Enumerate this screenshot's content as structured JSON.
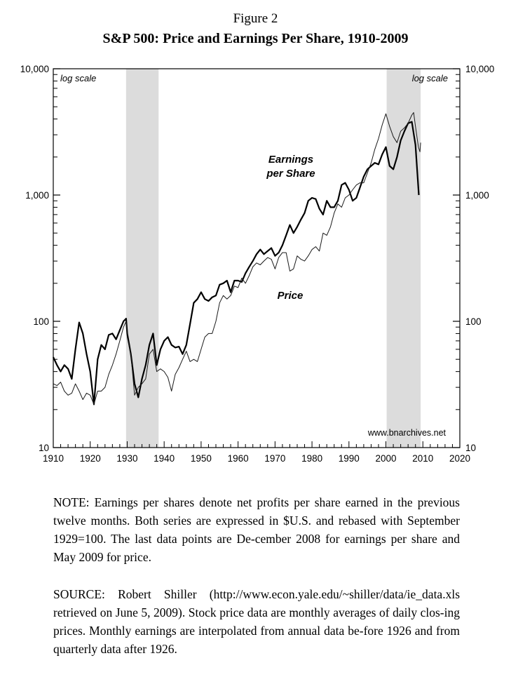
{
  "figure_label": "Figure 2",
  "title": "S&P 500: Price and Earnings Per Share, 1910-2009",
  "note": "NOTE: Earnings per shares denote net profits per share earned in the previous twelve months. Both series are expressed in $U.S. and rebased with September 1929=100. The last data points are De-cember 2008 for earnings per share and May 2009 for price.",
  "source": "SOURCE: Robert Shiller (http://www.econ.yale.edu/~shiller/data/ie_data.xls retrieved on June 5, 2009). Stock price data are monthly averages of daily clos-ing prices. Monthly earnings are interpolated from annual data be-fore 1926 and from quarterly data after 1926.",
  "chart_data": {
    "type": "line",
    "title": "S&P 500: Price and Earnings Per Share, 1910-2009",
    "xlim": [
      1910,
      2020
    ],
    "ylim": [
      10,
      10000
    ],
    "y_scale": "log",
    "grid": false,
    "x_ticks": [
      1910,
      1920,
      1930,
      1940,
      1950,
      1960,
      1970,
      1980,
      1990,
      2000,
      2010,
      2020
    ],
    "x_tick_labels": [
      "1910",
      "1920",
      "1930",
      "1940",
      "1950",
      "1960",
      "1970",
      "1980",
      "1990",
      "2000",
      "2010",
      "2020"
    ],
    "y_ticks": [
      10,
      100,
      1000,
      10000
    ],
    "y_tick_labels": [
      "10",
      "100",
      "1,000",
      "10,000"
    ],
    "scale_note_left": "log scale",
    "scale_note_right": "log scale",
    "watermark": "www.bnarchives.net",
    "shaded_periods": [
      [
        1929.7,
        1938.5
      ],
      [
        2000.2,
        2009.4
      ]
    ],
    "series": [
      {
        "name": "Earnings per Share",
        "name_lines": [
          "Earnings",
          "per Share"
        ],
        "stroke": "#000000",
        "points": [
          [
            1910,
            52
          ],
          [
            1911,
            45
          ],
          [
            1912,
            40
          ],
          [
            1913,
            45
          ],
          [
            1914,
            42
          ],
          [
            1915,
            35
          ],
          [
            1916,
            60
          ],
          [
            1917,
            98
          ],
          [
            1918,
            80
          ],
          [
            1919,
            55
          ],
          [
            1920,
            40
          ],
          [
            1921,
            22
          ],
          [
            1922,
            50
          ],
          [
            1923,
            65
          ],
          [
            1924,
            60
          ],
          [
            1925,
            78
          ],
          [
            1926,
            80
          ],
          [
            1927,
            72
          ],
          [
            1928,
            85
          ],
          [
            1929,
            100
          ],
          [
            1929.7,
            105
          ],
          [
            1930,
            80
          ],
          [
            1931,
            55
          ],
          [
            1932,
            32
          ],
          [
            1933,
            25
          ],
          [
            1934,
            35
          ],
          [
            1935,
            45
          ],
          [
            1936,
            65
          ],
          [
            1937,
            80
          ],
          [
            1938,
            45
          ],
          [
            1939,
            60
          ],
          [
            1940,
            70
          ],
          [
            1941,
            75
          ],
          [
            1942,
            65
          ],
          [
            1943,
            62
          ],
          [
            1944,
            63
          ],
          [
            1945,
            55
          ],
          [
            1946,
            65
          ],
          [
            1947,
            95
          ],
          [
            1948,
            140
          ],
          [
            1949,
            150
          ],
          [
            1950,
            170
          ],
          [
            1951,
            150
          ],
          [
            1952,
            145
          ],
          [
            1953,
            155
          ],
          [
            1954,
            160
          ],
          [
            1955,
            195
          ],
          [
            1956,
            200
          ],
          [
            1957,
            210
          ],
          [
            1958,
            170
          ],
          [
            1959,
            210
          ],
          [
            1960,
            210
          ],
          [
            1961,
            205
          ],
          [
            1962,
            240
          ],
          [
            1963,
            270
          ],
          [
            1964,
            300
          ],
          [
            1965,
            340
          ],
          [
            1966,
            370
          ],
          [
            1967,
            340
          ],
          [
            1968,
            360
          ],
          [
            1969,
            380
          ],
          [
            1970,
            330
          ],
          [
            1971,
            350
          ],
          [
            1972,
            400
          ],
          [
            1973,
            480
          ],
          [
            1974,
            580
          ],
          [
            1975,
            500
          ],
          [
            1976,
            560
          ],
          [
            1977,
            640
          ],
          [
            1978,
            720
          ],
          [
            1979,
            900
          ],
          [
            1980,
            950
          ],
          [
            1981,
            930
          ],
          [
            1982,
            780
          ],
          [
            1983,
            700
          ],
          [
            1984,
            900
          ],
          [
            1985,
            800
          ],
          [
            1986,
            800
          ],
          [
            1987,
            900
          ],
          [
            1988,
            1200
          ],
          [
            1989,
            1250
          ],
          [
            1990,
            1100
          ],
          [
            1991,
            900
          ],
          [
            1992,
            950
          ],
          [
            1993,
            1150
          ],
          [
            1994,
            1400
          ],
          [
            1995,
            1600
          ],
          [
            1996,
            1700
          ],
          [
            1997,
            1800
          ],
          [
            1998,
            1750
          ],
          [
            1999,
            2100
          ],
          [
            2000,
            2400
          ],
          [
            2001,
            1700
          ],
          [
            2002,
            1600
          ],
          [
            2003,
            2000
          ],
          [
            2004,
            2700
          ],
          [
            2005,
            3200
          ],
          [
            2006,
            3700
          ],
          [
            2007,
            3800
          ],
          [
            2008,
            2500
          ],
          [
            2008.9,
            1000
          ]
        ]
      },
      {
        "name": "Price",
        "stroke": "#1a1a1a",
        "points": [
          [
            1910,
            32
          ],
          [
            1911,
            31
          ],
          [
            1912,
            33
          ],
          [
            1913,
            28
          ],
          [
            1914,
            26
          ],
          [
            1915,
            27
          ],
          [
            1916,
            32
          ],
          [
            1917,
            28
          ],
          [
            1918,
            24
          ],
          [
            1919,
            27
          ],
          [
            1920,
            26
          ],
          [
            1921,
            22
          ],
          [
            1922,
            28
          ],
          [
            1923,
            28
          ],
          [
            1924,
            30
          ],
          [
            1925,
            38
          ],
          [
            1926,
            45
          ],
          [
            1927,
            55
          ],
          [
            1928,
            70
          ],
          [
            1929,
            90
          ],
          [
            1929.7,
            100
          ],
          [
            1930,
            75
          ],
          [
            1931,
            55
          ],
          [
            1932,
            26
          ],
          [
            1933,
            30
          ],
          [
            1934,
            32
          ],
          [
            1935,
            35
          ],
          [
            1936,
            55
          ],
          [
            1937,
            60
          ],
          [
            1938,
            40
          ],
          [
            1939,
            42
          ],
          [
            1940,
            40
          ],
          [
            1941,
            36
          ],
          [
            1942,
            28
          ],
          [
            1943,
            38
          ],
          [
            1944,
            43
          ],
          [
            1945,
            50
          ],
          [
            1946,
            58
          ],
          [
            1947,
            48
          ],
          [
            1948,
            50
          ],
          [
            1949,
            48
          ],
          [
            1950,
            60
          ],
          [
            1951,
            75
          ],
          [
            1952,
            80
          ],
          [
            1953,
            80
          ],
          [
            1954,
            100
          ],
          [
            1955,
            140
          ],
          [
            1956,
            160
          ],
          [
            1957,
            150
          ],
          [
            1958,
            160
          ],
          [
            1959,
            190
          ],
          [
            1960,
            185
          ],
          [
            1961,
            220
          ],
          [
            1962,
            200
          ],
          [
            1963,
            230
          ],
          [
            1964,
            270
          ],
          [
            1965,
            290
          ],
          [
            1966,
            280
          ],
          [
            1967,
            300
          ],
          [
            1968,
            320
          ],
          [
            1969,
            310
          ],
          [
            1970,
            260
          ],
          [
            1971,
            320
          ],
          [
            1972,
            350
          ],
          [
            1973,
            350
          ],
          [
            1974,
            250
          ],
          [
            1975,
            260
          ],
          [
            1976,
            330
          ],
          [
            1977,
            310
          ],
          [
            1978,
            300
          ],
          [
            1979,
            330
          ],
          [
            1980,
            370
          ],
          [
            1981,
            390
          ],
          [
            1982,
            360
          ],
          [
            1983,
            500
          ],
          [
            1984,
            480
          ],
          [
            1985,
            560
          ],
          [
            1986,
            720
          ],
          [
            1987,
            850
          ],
          [
            1988,
            800
          ],
          [
            1989,
            950
          ],
          [
            1990,
            1000
          ],
          [
            1991,
            1100
          ],
          [
            1992,
            1200
          ],
          [
            1993,
            1250
          ],
          [
            1994,
            1250
          ],
          [
            1995,
            1500
          ],
          [
            1996,
            1800
          ],
          [
            1997,
            2300
          ],
          [
            1998,
            2800
          ],
          [
            1999,
            3600
          ],
          [
            2000,
            4400
          ],
          [
            2001,
            3500
          ],
          [
            2002,
            2900
          ],
          [
            2003,
            2600
          ],
          [
            2004,
            3200
          ],
          [
            2005,
            3400
          ],
          [
            2006,
            3700
          ],
          [
            2007,
            4300
          ],
          [
            2007.5,
            4500
          ],
          [
            2008,
            3500
          ],
          [
            2008.8,
            2400
          ],
          [
            2009.2,
            2200
          ],
          [
            2009.4,
            2600
          ]
        ]
      }
    ]
  }
}
